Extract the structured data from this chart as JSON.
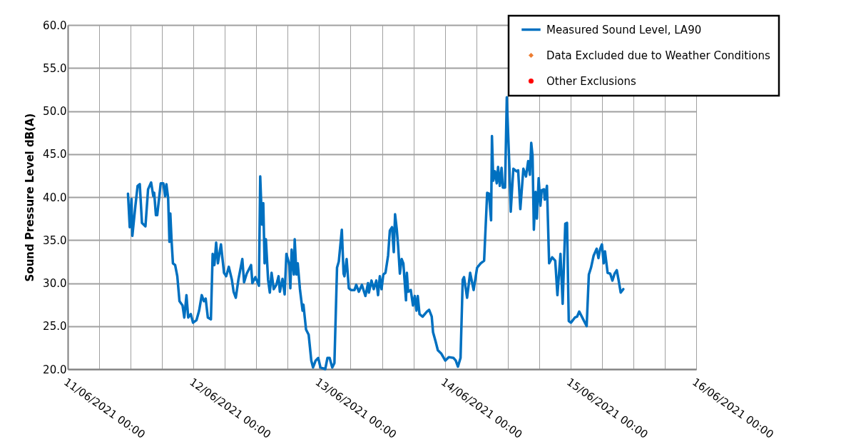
{
  "chart_data": {
    "type": "line",
    "ylabel": "Sound Pressure Level dB(A)",
    "legend": "top right",
    "grid": true,
    "line_style": "solid",
    "xlim": [
      "2021-06-11T00:00",
      "2021-06-16T00:00"
    ],
    "xticks": [
      {
        "value": "2021-06-11T00:00",
        "label": "11/06/2021 00:00"
      },
      {
        "value": "2021-06-11T06:00",
        "label": null
      },
      {
        "value": "2021-06-11T12:00",
        "label": null
      },
      {
        "value": "2021-06-11T18:00",
        "label": null
      },
      {
        "value": "2021-06-12T00:00",
        "label": "12/06/2021 00:00"
      },
      {
        "value": "2021-06-12T06:00",
        "label": null
      },
      {
        "value": "2021-06-12T12:00",
        "label": null
      },
      {
        "value": "2021-06-12T18:00",
        "label": null
      },
      {
        "value": "2021-06-13T00:00",
        "label": "13/06/2021 00:00"
      },
      {
        "value": "2021-06-13T06:00",
        "label": null
      },
      {
        "value": "2021-06-13T12:00",
        "label": null
      },
      {
        "value": "2021-06-13T18:00",
        "label": null
      },
      {
        "value": "2021-06-14T00:00",
        "label": "14/06/2021 00:00"
      },
      {
        "value": "2021-06-14T06:00",
        "label": null
      },
      {
        "value": "2021-06-14T12:00",
        "label": null
      },
      {
        "value": "2021-06-14T18:00",
        "label": null
      },
      {
        "value": "2021-06-15T00:00",
        "label": "15/06/2021 00:00"
      },
      {
        "value": "2021-06-15T06:00",
        "label": null
      },
      {
        "value": "2021-06-15T12:00",
        "label": null
      },
      {
        "value": "2021-06-15T18:00",
        "label": null
      },
      {
        "value": "2021-06-16T00:00",
        "label": "16/06/2021 00:00"
      }
    ],
    "ylim": [
      20,
      60
    ],
    "yticks": [
      {
        "value": 20,
        "label": "20.0"
      },
      {
        "value": 25,
        "label": "25.0"
      },
      {
        "value": 30,
        "label": "30.0"
      },
      {
        "value": 35,
        "label": "35.0"
      },
      {
        "value": 40,
        "label": "40.0"
      },
      {
        "value": 45,
        "label": "45.0"
      },
      {
        "value": 50,
        "label": "50.0"
      },
      {
        "value": 55,
        "label": "55.0"
      },
      {
        "value": 60,
        "label": "60.0"
      }
    ],
    "series": [
      {
        "name": "Measured Sound Level, LA90",
        "color": "#0070c0",
        "x": [
          "2021-06-11T11:30",
          "2021-06-11T11:50",
          "2021-06-11T12:10",
          "2021-06-11T12:20",
          "2021-06-11T12:55",
          "2021-06-11T13:20",
          "2021-06-11T13:45",
          "2021-06-11T14:10",
          "2021-06-11T14:50",
          "2021-06-11T15:20",
          "2021-06-11T15:55",
          "2021-06-11T16:20",
          "2021-06-11T16:30",
          "2021-06-11T16:50",
          "2021-06-11T17:05",
          "2021-06-11T17:45",
          "2021-06-11T18:15",
          "2021-06-11T18:35",
          "2021-06-11T18:50",
          "2021-06-11T19:10",
          "2021-06-11T19:25",
          "2021-06-11T19:35",
          "2021-06-11T19:50",
          "2021-06-11T20:05",
          "2021-06-11T20:30",
          "2021-06-11T20:55",
          "2021-06-11T21:20",
          "2021-06-11T21:55",
          "2021-06-11T22:15",
          "2021-06-11T22:40",
          "2021-06-11T23:00",
          "2021-06-11T23:30",
          "2021-06-11T23:55",
          "2021-06-12T00:35",
          "2021-06-12T01:05",
          "2021-06-12T01:35",
          "2021-06-12T02:00",
          "2021-06-12T02:20",
          "2021-06-12T02:45",
          "2021-06-12T03:20",
          "2021-06-12T03:40",
          "2021-06-12T04:00",
          "2021-06-12T04:20",
          "2021-06-12T04:40",
          "2021-06-12T05:15",
          "2021-06-12T05:50",
          "2021-06-12T06:15",
          "2021-06-12T06:45",
          "2021-06-12T07:20",
          "2021-06-12T07:40",
          "2021-06-12T08:05",
          "2021-06-12T08:35",
          "2021-06-12T09:20",
          "2021-06-12T09:40",
          "2021-06-12T10:10",
          "2021-06-12T11:00",
          "2021-06-12T11:15",
          "2021-06-12T11:50",
          "2021-06-12T12:30",
          "2021-06-12T12:45",
          "2021-06-12T13:05",
          "2021-06-12T13:20",
          "2021-06-12T13:35",
          "2021-06-12T13:50",
          "2021-06-12T14:15",
          "2021-06-12T14:35",
          "2021-06-12T14:55",
          "2021-06-12T15:20",
          "2021-06-12T15:50",
          "2021-06-12T16:15",
          "2021-06-12T16:30",
          "2021-06-12T17:00",
          "2021-06-12T17:25",
          "2021-06-12T17:45",
          "2021-06-12T18:20",
          "2021-06-12T18:30",
          "2021-06-12T18:45",
          "2021-06-12T19:10",
          "2021-06-12T19:20",
          "2021-06-12T19:40",
          "2021-06-12T19:55",
          "2021-06-12T20:20",
          "2021-06-12T20:50",
          "2021-06-12T21:00",
          "2021-06-12T21:30",
          "2021-06-12T22:00",
          "2021-06-12T22:30",
          "2021-06-12T22:50",
          "2021-06-12T23:20",
          "2021-06-12T23:50",
          "2021-06-13T00:15",
          "2021-06-13T01:10",
          "2021-06-13T01:35",
          "2021-06-13T02:00",
          "2021-06-13T02:30",
          "2021-06-13T02:55",
          "2021-06-13T03:25",
          "2021-06-13T03:45",
          "2021-06-13T04:20",
          "2021-06-13T04:40",
          "2021-06-13T04:50",
          "2021-06-13T05:15",
          "2021-06-13T05:40",
          "2021-06-13T06:05",
          "2021-06-13T06:45",
          "2021-06-13T07:05",
          "2021-06-13T07:35",
          "2021-06-13T08:10",
          "2021-06-13T08:50",
          "2021-06-13T09:20",
          "2021-06-13T09:30",
          "2021-06-13T10:00",
          "2021-06-13T10:25",
          "2021-06-13T10:55",
          "2021-06-13T11:15",
          "2021-06-13T11:35",
          "2021-06-13T11:55",
          "2021-06-13T12:15",
          "2021-06-13T12:40",
          "2021-06-13T13:10",
          "2021-06-13T13:30",
          "2021-06-13T13:55",
          "2021-06-13T14:15",
          "2021-06-13T14:30",
          "2021-06-13T14:50",
          "2021-06-13T15:05",
          "2021-06-13T15:25",
          "2021-06-13T15:45",
          "2021-06-13T16:05",
          "2021-06-13T16:35",
          "2021-06-13T16:45",
          "2021-06-13T17:00",
          "2021-06-13T17:30",
          "2021-06-13T17:55",
          "2021-06-13T18:15",
          "2021-06-13T18:35",
          "2021-06-13T18:50",
          "2021-06-13T19:10",
          "2021-06-13T19:45",
          "2021-06-13T20:35",
          "2021-06-13T21:00",
          "2021-06-13T21:30",
          "2021-06-13T21:45",
          "2021-06-13T22:15",
          "2021-06-13T22:40",
          "2021-06-13T23:20",
          "2021-06-14T00:05",
          "2021-06-14T00:45",
          "2021-06-14T01:40",
          "2021-06-14T02:05",
          "2021-06-14T02:30",
          "2021-06-14T03:00",
          "2021-06-14T03:25",
          "2021-06-14T03:40",
          "2021-06-14T04:15",
          "2021-06-14T04:50",
          "2021-06-14T05:30",
          "2021-06-14T06:10",
          "2021-06-14T06:50",
          "2021-06-14T07:30",
          "2021-06-14T08:05",
          "2021-06-14T08:25",
          "2021-06-14T08:50",
          "2021-06-14T09:00",
          "2021-06-14T09:15",
          "2021-06-14T09:35",
          "2021-06-14T09:55",
          "2021-06-14T10:10",
          "2021-06-14T10:30",
          "2021-06-14T10:50",
          "2021-06-14T11:05",
          "2021-06-14T11:30",
          "2021-06-14T11:50",
          "2021-06-14T12:20",
          "2021-06-14T12:35",
          "2021-06-14T13:05",
          "2021-06-14T13:40",
          "2021-06-14T14:00",
          "2021-06-14T14:25",
          "2021-06-14T15:00",
          "2021-06-14T15:30",
          "2021-06-14T15:55",
          "2021-06-14T16:15",
          "2021-06-14T16:30",
          "2021-06-14T16:45",
          "2021-06-14T17:00",
          "2021-06-14T17:20",
          "2021-06-14T17:35",
          "2021-06-14T17:55",
          "2021-06-14T18:15",
          "2021-06-14T18:30",
          "2021-06-14T18:55",
          "2021-06-14T19:05",
          "2021-06-14T19:30",
          "2021-06-14T19:55",
          "2021-06-14T20:30",
          "2021-06-14T21:05",
          "2021-06-14T21:30",
          "2021-06-14T22:05",
          "2021-06-14T22:30",
          "2021-06-14T23:00",
          "2021-06-14T23:20",
          "2021-06-14T23:40",
          "2021-06-15T00:05",
          "2021-06-15T00:50",
          "2021-06-15T01:15",
          "2021-06-15T01:40",
          "2021-06-15T02:25",
          "2021-06-15T03:05",
          "2021-06-15T03:30",
          "2021-06-15T03:55",
          "2021-06-15T04:25",
          "2021-06-15T05:00",
          "2021-06-15T05:20",
          "2021-06-15T05:40",
          "2021-06-15T06:00",
          "2021-06-15T06:20",
          "2021-06-15T06:35",
          "2021-06-15T07:05",
          "2021-06-15T07:35",
          "2021-06-15T08:00",
          "2021-06-15T08:25",
          "2021-06-15T08:50",
          "2021-06-15T09:10",
          "2021-06-15T09:35",
          "2021-06-15T10:05"
        ],
        "values": [
          40.4,
          36.5,
          39.8,
          35.5,
          39.0,
          41.3,
          41.5,
          37.0,
          36.6,
          40.9,
          41.7,
          40.1,
          40.5,
          37.9,
          37.9,
          41.6,
          41.6,
          40.1,
          41.5,
          39.9,
          34.8,
          38.1,
          34.8,
          32.3,
          32.1,
          30.8,
          27.9,
          27.4,
          26.0,
          28.6,
          26.0,
          26.4,
          25.4,
          25.7,
          26.8,
          28.6,
          27.9,
          28.2,
          26.0,
          25.8,
          33.4,
          32.1,
          34.7,
          32.3,
          34.5,
          31.2,
          30.8,
          31.9,
          30.4,
          29.0,
          28.3,
          30.4,
          32.8,
          30.1,
          31.1,
          32.1,
          30.0,
          30.7,
          29.7,
          42.4,
          36.8,
          39.3,
          32.3,
          35.1,
          30.4,
          28.9,
          31.2,
          29.3,
          29.8,
          30.8,
          29.0,
          30.5,
          28.7,
          33.4,
          32.1,
          29.4,
          33.9,
          31.0,
          35.1,
          31.0,
          32.3,
          29.3,
          26.8,
          27.5,
          24.6,
          24.0,
          21.0,
          20.2,
          21.0,
          21.3,
          20.2,
          20.0,
          21.3,
          21.3,
          20.2,
          20.7,
          31.8,
          32.5,
          36.2,
          31.1,
          30.8,
          32.8,
          29.4,
          29.2,
          29.2,
          29.8,
          29.0,
          29.8,
          28.5,
          30.0,
          28.9,
          30.3,
          29.3,
          30.3,
          28.6,
          30.8,
          29.3,
          31.0,
          31.2,
          33.2,
          36.1,
          36.5,
          33.6,
          38.0,
          36.2,
          34.3,
          31.1,
          32.8,
          32.3,
          28.0,
          31.2,
          29.0,
          29.2,
          27.4,
          28.5,
          26.8,
          28.5,
          26.4,
          26.1,
          26.7,
          26.9,
          26.1,
          24.3,
          23.2,
          22.2,
          21.8,
          21.0,
          21.4,
          21.3,
          21.0,
          20.3,
          21.3,
          30.4,
          30.7,
          28.3,
          31.2,
          29.2,
          31.8,
          32.3,
          32.6,
          40.5,
          40.4,
          37.3,
          47.1,
          41.9,
          43.0,
          41.6,
          43.5,
          41.3,
          43.4,
          41.1,
          41.1,
          51.6,
          43.4,
          38.3,
          43.3,
          43.0,
          43.1,
          38.6,
          43.3,
          42.4,
          44.2,
          42.6,
          46.3,
          44.8,
          36.2,
          40.6,
          37.5,
          42.2,
          39.0,
          40.8,
          40.9,
          39.7,
          41.3,
          32.3,
          33.0,
          32.6,
          28.6,
          33.4,
          27.6,
          36.9,
          37.0,
          25.6,
          25.4,
          26.0,
          26.1,
          26.7,
          25.8,
          25.0,
          31.0,
          31.8,
          33.2,
          34.0,
          32.9,
          34.0,
          34.5,
          32.3,
          33.7,
          31.2,
          31.1,
          30.3,
          31.1,
          31.5,
          30.4,
          28.9,
          29.3
        ]
      },
      {
        "name": "Data Excluded due to Weather Conditions",
        "color": "#ed7d31",
        "type": "scatter",
        "marker": "diamond"
      },
      {
        "name": "Other Exclusions",
        "color": "#ff0000",
        "type": "scatter",
        "marker": "circle"
      }
    ]
  }
}
